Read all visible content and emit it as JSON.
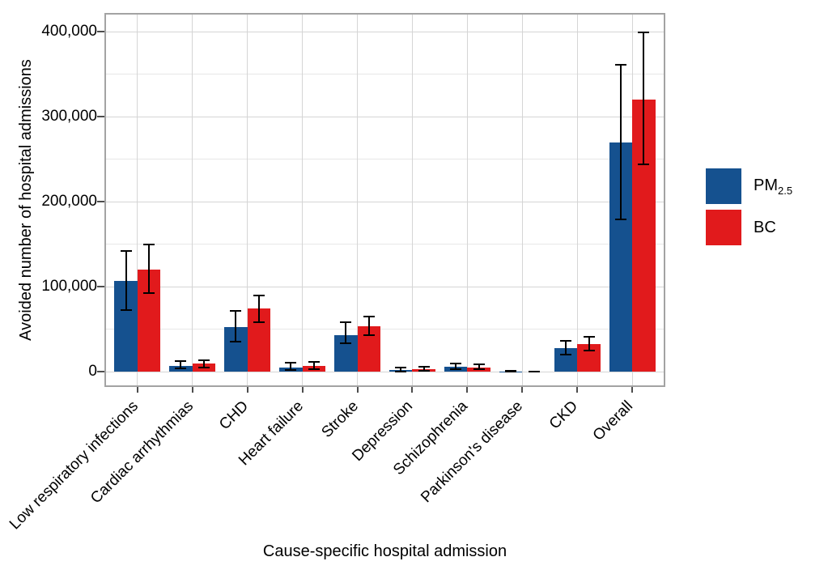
{
  "figure": {
    "y_axis": {
      "title": "Avoided number of hospital admissions",
      "tick_labels": [
        "0",
        "100,000",
        "200,000",
        "300,000",
        "400,000"
      ],
      "major_values": [
        0,
        100000,
        200000,
        300000,
        400000
      ],
      "minor_values": [
        50000,
        150000,
        250000,
        350000
      ]
    },
    "x_axis": {
      "title": "Cause-specific hospital admission"
    },
    "legend": {
      "entries": [
        {
          "name": "PM2.5",
          "label": "PM",
          "subscript": "2.5",
          "color": "#15518F"
        },
        {
          "name": "BC",
          "label": "BC",
          "subscript": "",
          "color": "#E11A1C"
        }
      ]
    },
    "colors": {
      "grid_major": "#D5D5D5",
      "grid_minor": "#E7E7E7",
      "panel_border": "#A3A3A3",
      "axis_tick": "#4D4D4D",
      "error_bar": "#000000"
    }
  },
  "chart_data": {
    "type": "bar",
    "title": "",
    "xlabel": "Cause-specific hospital admission",
    "ylabel": "Avoided number of hospital admissions",
    "ylim": [
      0,
      420000
    ],
    "grid": true,
    "legend_position": "right",
    "error_bars": true,
    "categories": [
      "Low respiratory infections",
      "Cardiac arrhythmias",
      "CHD",
      "Heart failure",
      "Stroke",
      "Depression",
      "Schizophrenia",
      "Parkinson's disease",
      "CKD",
      "Overall"
    ],
    "series": [
      {
        "name": "PM2.5",
        "color": "#15518F",
        "values": [
          109000,
          9000,
          54000,
          6500,
          45000,
          3500,
          7500,
          2000,
          30000,
          271000
        ],
        "ci_low": [
          73000,
          5000,
          36000,
          2500,
          34000,
          1000,
          3500,
          700,
          21000,
          180000
        ],
        "ci_high": [
          145000,
          15500,
          74000,
          13500,
          61000,
          8000,
          12500,
          3500,
          39000,
          364000
        ]
      },
      {
        "name": "BC",
        "color": "#E11A1C",
        "values": [
          122000,
          11000,
          76000,
          8500,
          55000,
          4500,
          7000,
          1500,
          34000,
          322000
        ],
        "ci_low": [
          93000,
          6000,
          59000,
          4000,
          44000,
          1800,
          3500,
          600,
          26000,
          245000
        ],
        "ci_high": [
          152000,
          16500,
          92000,
          14500,
          68000,
          8500,
          11500,
          3000,
          44000,
          402000
        ]
      }
    ]
  }
}
